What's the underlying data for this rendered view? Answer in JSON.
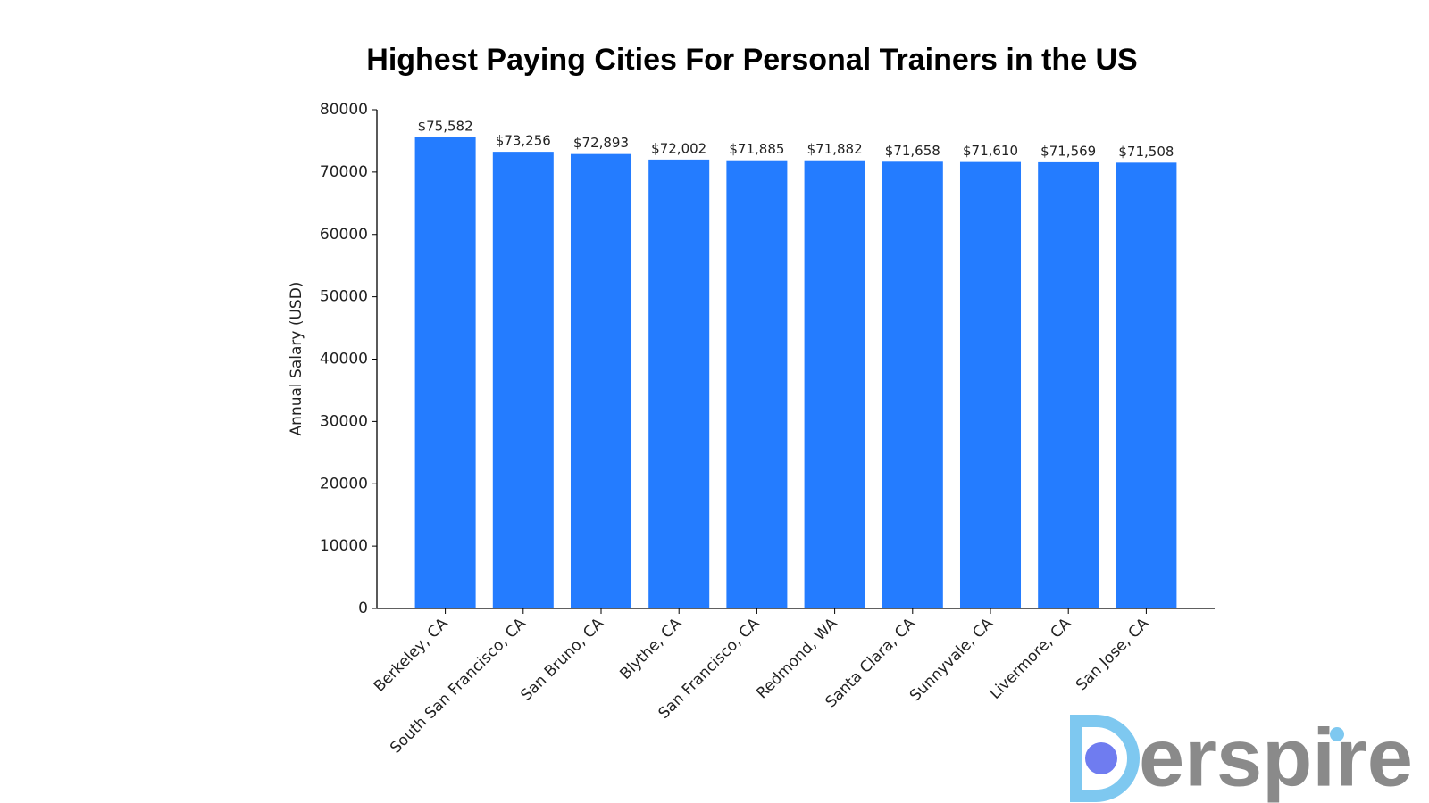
{
  "chart_data": {
    "type": "bar",
    "title": "Highest Paying Cities For Personal Trainers in the US",
    "y_label": "Annual Salary (USD)",
    "categories": [
      "Berkeley, CA",
      "South San Francisco, CA",
      "San Bruno, CA",
      "Blythe, CA",
      "San Francisco, CA",
      "Redmond, WA",
      "Santa Clara, CA",
      "Sunnyvale, CA",
      "Livermore, CA",
      "San Jose, CA"
    ],
    "values": [
      75582,
      73256,
      72893,
      72002,
      71885,
      71882,
      71658,
      71610,
      71569,
      71508
    ],
    "value_labels": [
      "$75,582",
      "$73,256",
      "$72,893",
      "$72,002",
      "$71,885",
      "$71,882",
      "$71,658",
      "$71,610",
      "$71,569",
      "$71,508"
    ],
    "color": "#247cff",
    "ylim": [
      0,
      80000
    ],
    "yticks": [
      0,
      10000,
      20000,
      30000,
      40000,
      50000,
      60000,
      70000,
      80000
    ],
    "grid": false,
    "watermark": "erspire"
  }
}
